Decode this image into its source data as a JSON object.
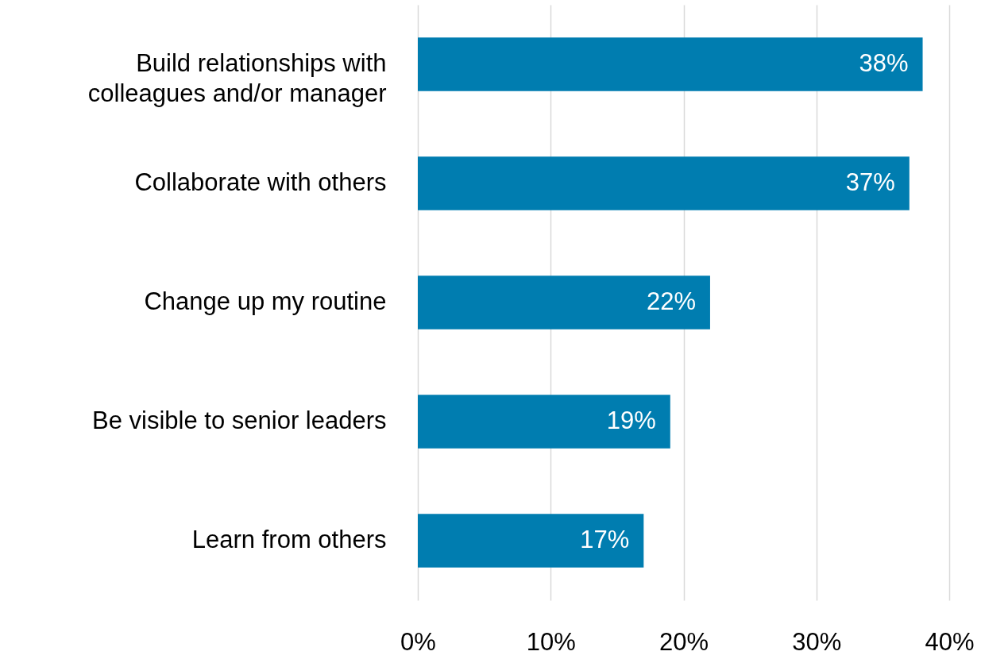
{
  "chart_data": {
    "type": "bar",
    "orientation": "horizontal",
    "categories": [
      "Build relationships with colleagues and/or manager",
      "Collaborate with others",
      "Change up my routine",
      "Be visible to senior leaders",
      "Learn from others"
    ],
    "values": [
      38,
      37,
      22,
      19,
      17
    ],
    "color": "#007db0",
    "value_labels": [
      "38%",
      "37%",
      "22%",
      "19%",
      "17%"
    ],
    "xlim": [
      0,
      40
    ],
    "xticks": [
      {
        "value": 0,
        "label": "0%"
      },
      {
        "value": 10,
        "label": "10%"
      },
      {
        "value": 20,
        "label": "20%"
      },
      {
        "value": 30,
        "label": "30%"
      },
      {
        "value": 40,
        "label": "40%"
      }
    ],
    "grid": "x"
  }
}
